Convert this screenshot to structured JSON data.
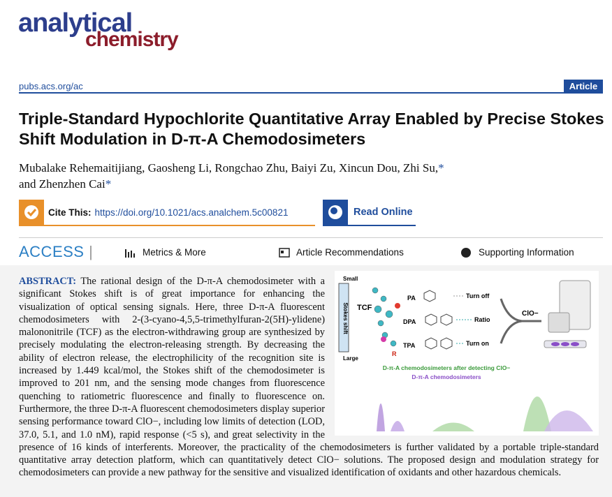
{
  "header": {
    "journal_line1": "analytical",
    "journal_line2": "chemistry",
    "url": "pubs.acs.org/ac",
    "article_type": "Article"
  },
  "article": {
    "title": "Triple-Standard Hypochlorite Quantitative Array Enabled by Precise Stokes Shift Modulation in D-π-A Chemodosimeters",
    "authors": "Mubalake Rehemaitijiang, Gaosheng Li, Rongchao Zhu, Baiyi Zu, Xincun Dou, Zhi Su,",
    "authors_mark1": "*",
    "authors_end": "and Zhenzhen Cai",
    "authors_mark2": "*"
  },
  "cite": {
    "label": "Cite This:",
    "doi": "https://doi.org/10.1021/acs.analchem.5c00821",
    "read_online": "Read Online"
  },
  "access": {
    "label": "ACCESS",
    "metrics": "Metrics & More",
    "recommendations": "Article Recommendations",
    "supporting": "Supporting Information"
  },
  "abstract": {
    "label": "ABSTRACT:",
    "text": "The rational design of the D-π-A chemodosimeter with a significant Stokes shift is of great importance for enhancing the visualization of optical sensing signals. Here, three D-π-A fluorescent chemodosimeters with 2-(3-cyano-4,5,5-trimethylfuran-2(5H)-ylidene) malononitrile (TCF) as the electron-withdrawing group are synthesized by precisely modulating the electron-releasing strength. By decreasing the ability of electron release, the electrophilicity of the recognition site is increased by 1.449 kcal/mol, the Stokes shift of the chemodosimeter is improved to 201 nm, and the sensing mode changes from fluorescence quenching to ratiometric fluorescence and finally to fluorescence on. Furthermore, the three D-π-A fluorescent chemodosimeters display superior sensing performance toward ClO−, including low limits of detection (LOD, 37.0, 5.1, and 1.0 nM), rapid response (<5 s), and great selectivity in the presence of 16 kinds of interferents. Moreover, the practicality of the chemodosimeters is further validated by a portable triple-standard quantitative array detection platform, which can quantitatively detect ClO− solutions. The proposed design and modulation strategy for chemodosimeters can provide a new pathway for the sensitive and visualized identification of oxidants and other hazardous chemicals."
  },
  "graphic": {
    "small": "Small",
    "axis": "Stokes shift",
    "large": "Large",
    "tcf": "TCF",
    "r": "R",
    "pa": "PA",
    "dpa": "DPA",
    "tpa": "TPA",
    "turn_off": "Turn off",
    "ratio": "Ratio",
    "turn_on": "Turn on",
    "clo": "ClO−",
    "caption1": "D-π-A chemodosimeters after detecting ClO−",
    "caption2": "D-π-A chemodosimeters"
  }
}
